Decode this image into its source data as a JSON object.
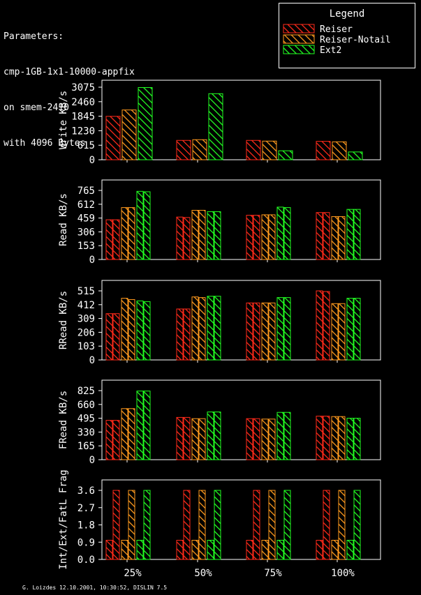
{
  "header": {
    "lines": [
      "Parameters:",
      "cmp-1GB-1x1-10000-appfix",
      "on smem-2410",
      "with 4096 Bytes"
    ]
  },
  "legend": {
    "title": "Legend",
    "entries": [
      "Reiser",
      "Reiser-Notail",
      "Ext2"
    ]
  },
  "footer": "G. Loizdes 12.10.2001, 10:30:52, DISLIN 7.5",
  "colors": {
    "Reiser": "#ff2a1a",
    "Reiser-Notail": "#ff9a1e",
    "Ext2": "#22ff22"
  },
  "chart_data": [
    {
      "type": "bar",
      "ylabel": "Write KB/s",
      "categories": [
        "25%",
        "50%",
        "75%",
        "100%"
      ],
      "ylim": [
        0,
        3075
      ],
      "yticks": [
        "0",
        "615",
        "1230",
        "1845",
        "2460",
        "3075"
      ],
      "series": [
        {
          "name": "Reiser",
          "values": [
            [
              1840
            ],
            [
              820
            ],
            [
              820
            ],
            [
              780
            ]
          ]
        },
        {
          "name": "Reiser-Notail",
          "values": [
            [
              2110
            ],
            [
              850
            ],
            [
              790
            ],
            [
              760
            ]
          ]
        },
        {
          "name": "Ext2",
          "values": [
            [
              3060
            ],
            [
              2800
            ],
            [
              380
            ],
            [
              330
            ]
          ]
        }
      ]
    },
    {
      "type": "bar",
      "ylabel": "Read KB/s",
      "categories": [
        "25%",
        "50%",
        "75%",
        "100%"
      ],
      "ylim": [
        0,
        765
      ],
      "yticks": [
        "0",
        "153",
        "306",
        "459",
        "612",
        "765"
      ],
      "series": [
        {
          "name": "Reiser",
          "values": [
            [
              440,
              440
            ],
            [
              470,
              465
            ],
            [
              490,
              490
            ],
            [
              520,
              520
            ]
          ]
        },
        {
          "name": "Reiser-Notail",
          "values": [
            [
              575,
              575
            ],
            [
              545,
              545
            ],
            [
              495,
              495
            ],
            [
              475,
              475
            ]
          ]
        },
        {
          "name": "Ext2",
          "values": [
            [
              755,
              750
            ],
            [
              530,
              530
            ],
            [
              580,
              575
            ],
            [
              555,
              555
            ]
          ]
        }
      ]
    },
    {
      "type": "bar",
      "ylabel": "RRead KB/s",
      "categories": [
        "25%",
        "50%",
        "75%",
        "100%"
      ],
      "ylim": [
        0,
        515
      ],
      "yticks": [
        "0",
        "103",
        "206",
        "309",
        "412",
        "515"
      ],
      "series": [
        {
          "name": "Reiser",
          "values": [
            [
              345,
              345
            ],
            [
              380,
              380
            ],
            [
              425,
              425
            ],
            [
              515,
              510
            ]
          ]
        },
        {
          "name": "Reiser-Notail",
          "values": [
            [
              460,
              450
            ],
            [
              470,
              465
            ],
            [
              425,
              425
            ],
            [
              420,
              420
            ]
          ]
        },
        {
          "name": "Ext2",
          "values": [
            [
              440,
              435
            ],
            [
              475,
              475
            ],
            [
              465,
              465
            ],
            [
              460,
              460
            ]
          ]
        }
      ]
    },
    {
      "type": "bar",
      "ylabel": "FRead KB/s",
      "categories": [
        "25%",
        "50%",
        "75%",
        "100%"
      ],
      "ylim": [
        0,
        825
      ],
      "yticks": [
        "0",
        "165",
        "330",
        "495",
        "660",
        "825"
      ],
      "series": [
        {
          "name": "Reiser",
          "values": [
            [
              470,
              470
            ],
            [
              505,
              505
            ],
            [
              490,
              490
            ],
            [
              520,
              520
            ]
          ]
        },
        {
          "name": "Reiser-Notail",
          "values": [
            [
              610,
              610
            ],
            [
              490,
              490
            ],
            [
              485,
              485
            ],
            [
              515,
              515
            ]
          ]
        },
        {
          "name": "Ext2",
          "values": [
            [
              820,
              820
            ],
            [
              570,
              570
            ],
            [
              565,
              565
            ],
            [
              495,
              495
            ]
          ]
        }
      ]
    },
    {
      "type": "bar",
      "ylabel": "Int/Ext/FatL Frag",
      "categories": [
        "25%",
        "50%",
        "75%",
        "100%"
      ],
      "ylim": [
        0,
        3.6
      ],
      "yticks": [
        "0.0",
        "0.9",
        "1.8",
        "2.7",
        "3.6"
      ],
      "series": [
        {
          "name": "Reiser",
          "values": [
            [
              1.0,
              3.6
            ],
            [
              1.0,
              3.6
            ],
            [
              1.0,
              3.6
            ],
            [
              1.0,
              3.6
            ]
          ]
        },
        {
          "name": "Reiser-Notail",
          "values": [
            [
              1.0,
              3.6
            ],
            [
              1.0,
              3.6
            ],
            [
              1.0,
              3.6
            ],
            [
              1.0,
              3.6
            ]
          ]
        },
        {
          "name": "Ext2",
          "values": [
            [
              1.0,
              3.6
            ],
            [
              1.0,
              3.6
            ],
            [
              1.0,
              3.6
            ],
            [
              1.0,
              3.6
            ]
          ]
        }
      ]
    }
  ]
}
